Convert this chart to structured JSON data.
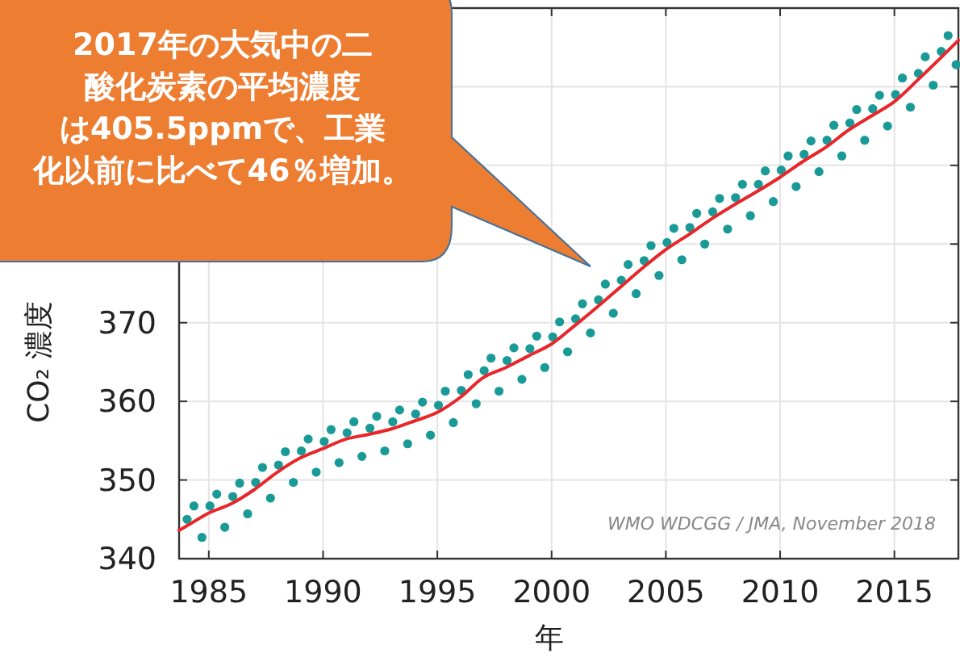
{
  "chart_data": {
    "type": "line",
    "xlabel": "年",
    "ylabel": "CO₂ 濃度",
    "annotations": [
      "2017年の大気中の二酸化炭素の平均濃度は405.5ppmで、工業化以前に比べて46％増加。",
      "WMO WDCGG / JMA, November 2018"
    ],
    "xlim": [
      1983.7,
      2017.8
    ],
    "xticks": [
      1985,
      1990,
      1995,
      2000,
      2005,
      2010,
      2015
    ],
    "ylim": [
      340,
      410
    ],
    "yticks": [
      340,
      350,
      360,
      370,
      {
        "value": 380,
        "label": null
      },
      {
        "value": 390,
        "label": null
      },
      {
        "value": 400,
        "label": null
      }
    ],
    "grid": true,
    "series": [
      {
        "type": "scatter",
        "marker": "circle",
        "color": "#1a9a96",
        "x": [
          1984.05,
          1984.35,
          1984.7,
          1985.05,
          1985.35,
          1985.7,
          1986.05,
          1986.35,
          1986.7,
          1987.05,
          1987.35,
          1987.7,
          1988.05,
          1988.35,
          1988.7,
          1989.05,
          1989.35,
          1989.7,
          1990.05,
          1990.35,
          1990.7,
          1991.05,
          1991.35,
          1991.7,
          1992.05,
          1992.35,
          1992.7,
          1993.05,
          1993.35,
          1993.7,
          1994.05,
          1994.35,
          1994.7,
          1995.05,
          1995.35,
          1995.7,
          1996.05,
          1996.35,
          1996.7,
          1997.05,
          1997.35,
          1997.7,
          1998.05,
          1998.35,
          1998.7,
          1999.05,
          1999.35,
          1999.7,
          2000.05,
          2000.35,
          2000.7,
          2001.05,
          2001.35,
          2001.7,
          2002.05,
          2002.35,
          2002.7,
          2003.05,
          2003.35,
          2003.7,
          2004.05,
          2004.35,
          2004.7,
          2005.05,
          2005.35,
          2005.7,
          2006.05,
          2006.35,
          2006.7,
          2007.05,
          2007.35,
          2007.7,
          2008.05,
          2008.35,
          2008.7,
          2009.05,
          2009.35,
          2009.7,
          2010.05,
          2010.35,
          2010.7,
          2011.05,
          2011.35,
          2011.7,
          2012.05,
          2012.35,
          2012.7,
          2013.05,
          2013.35,
          2013.7,
          2014.05,
          2014.35,
          2014.7,
          2015.05,
          2015.35,
          2015.7,
          2016.05,
          2016.35,
          2016.7,
          2017.05,
          2017.35,
          2017.7
        ],
        "values": [
          345.0,
          346.7,
          342.7,
          346.7,
          348.2,
          344.0,
          347.9,
          349.6,
          345.7,
          349.7,
          351.6,
          347.7,
          351.9,
          353.6,
          349.7,
          353.7,
          355.2,
          351.0,
          354.9,
          356.4,
          352.2,
          356.0,
          357.4,
          353.0,
          356.6,
          358.1,
          353.7,
          357.4,
          358.9,
          354.6,
          358.4,
          359.9,
          355.7,
          359.5,
          361.3,
          357.3,
          361.4,
          363.4,
          359.7,
          363.9,
          365.5,
          361.3,
          365.2,
          366.8,
          362.8,
          366.7,
          368.3,
          364.3,
          368.2,
          370.1,
          366.3,
          370.5,
          372.4,
          368.7,
          372.9,
          374.9,
          371.2,
          375.4,
          377.4,
          373.7,
          377.9,
          379.8,
          376.0,
          380.2,
          382.0,
          378.0,
          382.1,
          383.9,
          380.0,
          384.1,
          385.8,
          381.9,
          385.9,
          387.6,
          383.6,
          387.6,
          389.3,
          385.4,
          389.4,
          391.2,
          387.3,
          391.4,
          393.1,
          389.2,
          393.2,
          395.1,
          391.2,
          395.4,
          397.1,
          393.2,
          397.2,
          398.9,
          395.0,
          399.0,
          401.1,
          397.4,
          401.7,
          403.8,
          400.2,
          404.5,
          406.5,
          402.8
        ]
      },
      {
        "type": "line",
        "color": "#e8262a",
        "x": [
          1983.7,
          1984,
          1985,
          1986,
          1987,
          1988,
          1989,
          1990,
          1991,
          1992,
          1993,
          1994,
          1995,
          1996,
          1997,
          1998,
          1999,
          2000,
          2001,
          2002,
          2003,
          2004,
          2005,
          2006,
          2007,
          2008,
          2009,
          2010,
          2011,
          2012,
          2013,
          2014,
          2015,
          2016,
          2017,
          2017.8
        ],
        "values": [
          343.6,
          344.1,
          345.8,
          347.0,
          348.8,
          351.0,
          352.8,
          354.0,
          355.2,
          355.8,
          356.5,
          357.5,
          358.6,
          360.5,
          363.0,
          364.3,
          365.8,
          367.3,
          369.6,
          372.0,
          374.5,
          377.0,
          379.3,
          381.2,
          383.2,
          385.0,
          386.7,
          388.5,
          390.5,
          392.3,
          394.5,
          396.3,
          398.1,
          400.8,
          403.6,
          405.9
        ]
      }
    ]
  }
}
